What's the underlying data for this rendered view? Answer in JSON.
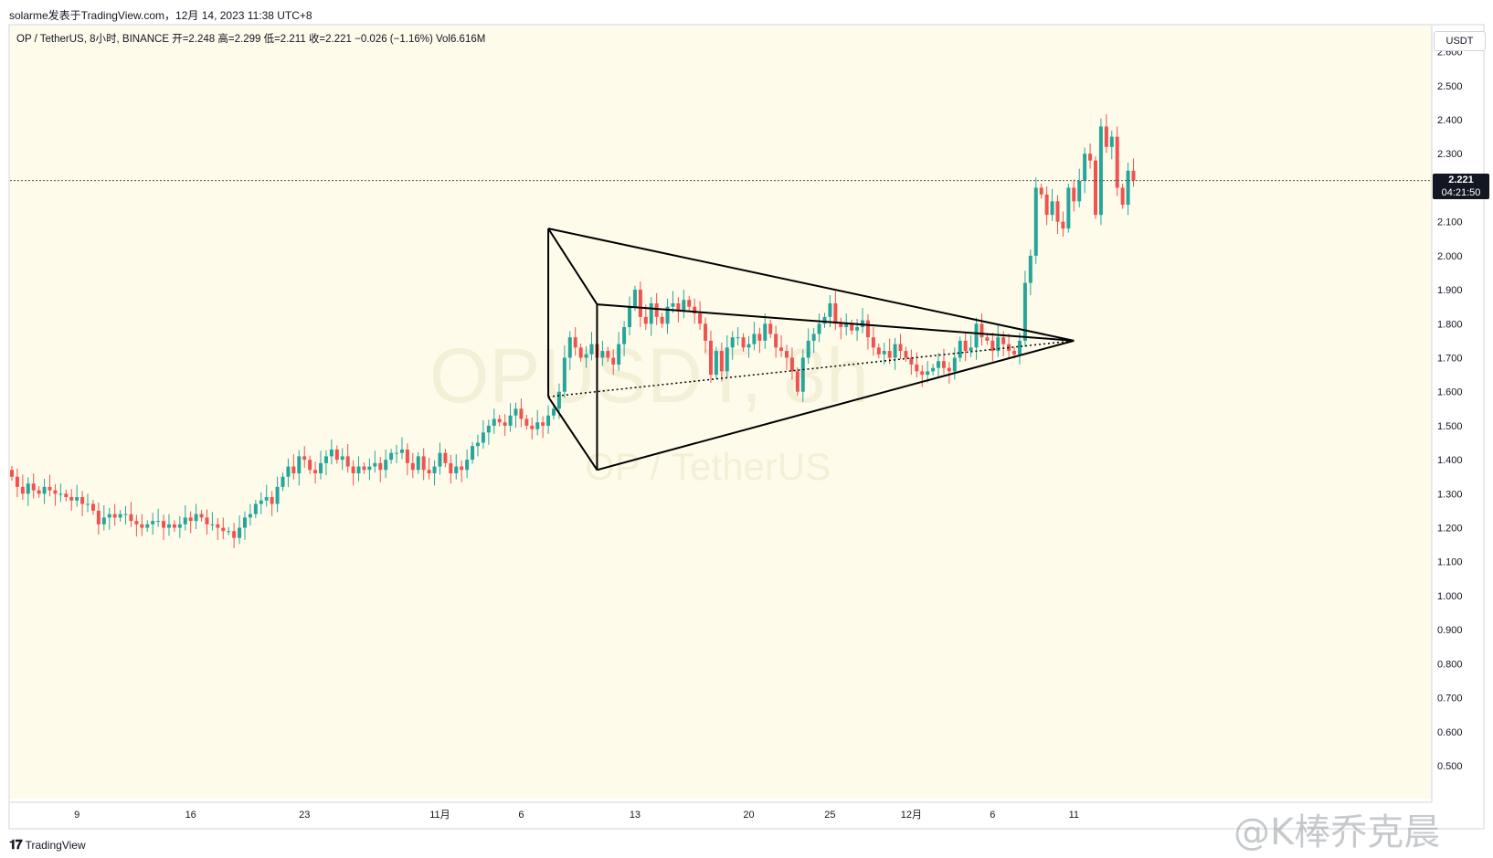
{
  "header": {
    "attribution": "solarme发表于TradingView.com，12月 14, 2023 11:38 UTC+8"
  },
  "legend": {
    "text": "OP / TetherUS, 8小时, BINANCE  开=2.248  高=2.299  低=2.211  收=2.221  −0.026 (−1.16%)  Vol6.616M"
  },
  "currency_box": "USDT",
  "last_price": {
    "value": "2.221",
    "countdown": "04:21:50"
  },
  "footer": {
    "brand": "TradingView"
  },
  "watermark": {
    "symbol": "OPUSDT, 8h",
    "pair": "OP / TetherUS",
    "weibo": "@K棒乔克晨"
  },
  "colors": {
    "background": "#fefbea",
    "up": "#26a69a",
    "down": "#ef5350",
    "drawing": "#000000",
    "price_line": "#555555"
  },
  "chart_data": {
    "type": "candlestick",
    "symbol": "OP / TetherUS",
    "interval": "8小时",
    "exchange": "BINANCE",
    "ohlc_last": {
      "open": 2.248,
      "high": 2.299,
      "low": 2.211,
      "close": 2.221,
      "change": -0.026,
      "change_pct": -1.16,
      "volume": "6.616M"
    },
    "y_range": [
      0.5,
      2.65
    ],
    "y_ticks": [
      "2.600",
      "2.500",
      "2.400",
      "2.300",
      "2.200",
      "2.100",
      "2.000",
      "1.900",
      "1.800",
      "1.700",
      "1.600",
      "1.500",
      "1.400",
      "1.300",
      "1.200",
      "1.100",
      "1.000",
      "0.900",
      "0.800",
      "0.700",
      "0.600",
      "0.500"
    ],
    "x_ticks": [
      {
        "label": "9",
        "bar": 12
      },
      {
        "label": "16",
        "bar": 33
      },
      {
        "label": "23",
        "bar": 54
      },
      {
        "label": "11月",
        "bar": 79
      },
      {
        "label": "6",
        "bar": 94
      },
      {
        "label": "13",
        "bar": 115
      },
      {
        "label": "20",
        "bar": 136
      },
      {
        "label": "25",
        "bar": 151
      },
      {
        "label": "12月",
        "bar": 166
      },
      {
        "label": "6",
        "bar": 181
      },
      {
        "label": "11",
        "bar": 196
      }
    ],
    "closes": [
      1.35,
      1.32,
      1.3,
      1.33,
      1.31,
      1.3,
      1.32,
      1.31,
      1.3,
      1.3,
      1.29,
      1.28,
      1.29,
      1.27,
      1.27,
      1.25,
      1.21,
      1.23,
      1.24,
      1.23,
      1.24,
      1.24,
      1.22,
      1.21,
      1.2,
      1.21,
      1.22,
      1.22,
      1.2,
      1.21,
      1.2,
      1.21,
      1.23,
      1.22,
      1.24,
      1.23,
      1.21,
      1.21,
      1.2,
      1.19,
      1.19,
      1.17,
      1.2,
      1.23,
      1.24,
      1.27,
      1.28,
      1.29,
      1.27,
      1.32,
      1.35,
      1.38,
      1.36,
      1.41,
      1.4,
      1.37,
      1.36,
      1.39,
      1.41,
      1.43,
      1.4,
      1.41,
      1.38,
      1.36,
      1.38,
      1.37,
      1.38,
      1.39,
      1.37,
      1.4,
      1.42,
      1.42,
      1.43,
      1.39,
      1.37,
      1.41,
      1.37,
      1.36,
      1.38,
      1.42,
      1.39,
      1.36,
      1.38,
      1.37,
      1.4,
      1.44,
      1.45,
      1.48,
      1.5,
      1.52,
      1.51,
      1.5,
      1.53,
      1.55,
      1.52,
      1.5,
      1.49,
      1.51,
      1.5,
      1.53,
      1.55,
      1.6,
      1.7,
      1.76,
      1.73,
      1.7,
      1.71,
      1.74,
      1.7,
      1.72,
      1.7,
      1.68,
      1.74,
      1.79,
      1.85,
      1.9,
      1.82,
      1.8,
      1.86,
      1.82,
      1.8,
      1.85,
      1.86,
      1.84,
      1.87,
      1.85,
      1.83,
      1.8,
      1.75,
      1.65,
      1.72,
      1.66,
      1.73,
      1.76,
      1.76,
      1.73,
      1.74,
      1.77,
      1.75,
      1.8,
      1.77,
      1.73,
      1.72,
      1.7,
      1.66,
      1.6,
      1.7,
      1.75,
      1.77,
      1.8,
      1.82,
      1.86,
      1.8,
      1.79,
      1.8,
      1.78,
      1.79,
      1.81,
      1.76,
      1.73,
      1.71,
      1.72,
      1.7,
      1.74,
      1.72,
      1.7,
      1.68,
      1.66,
      1.65,
      1.66,
      1.67,
      1.69,
      1.67,
      1.66,
      1.7,
      1.75,
      1.72,
      1.73,
      1.8,
      1.76,
      1.75,
      1.72,
      1.76,
      1.74,
      1.72,
      1.71,
      1.75,
      1.92,
      2.0,
      2.2,
      2.18,
      2.12,
      2.16,
      2.1,
      2.08,
      2.2,
      2.16,
      2.22,
      2.3,
      2.28,
      2.12,
      2.38,
      2.32,
      2.35,
      2.2,
      2.15,
      2.25,
      2.221
    ]
  },
  "drawings": {
    "triangle_pattern": "XABCD triangle with apex near 1.75 on 12月 11"
  }
}
